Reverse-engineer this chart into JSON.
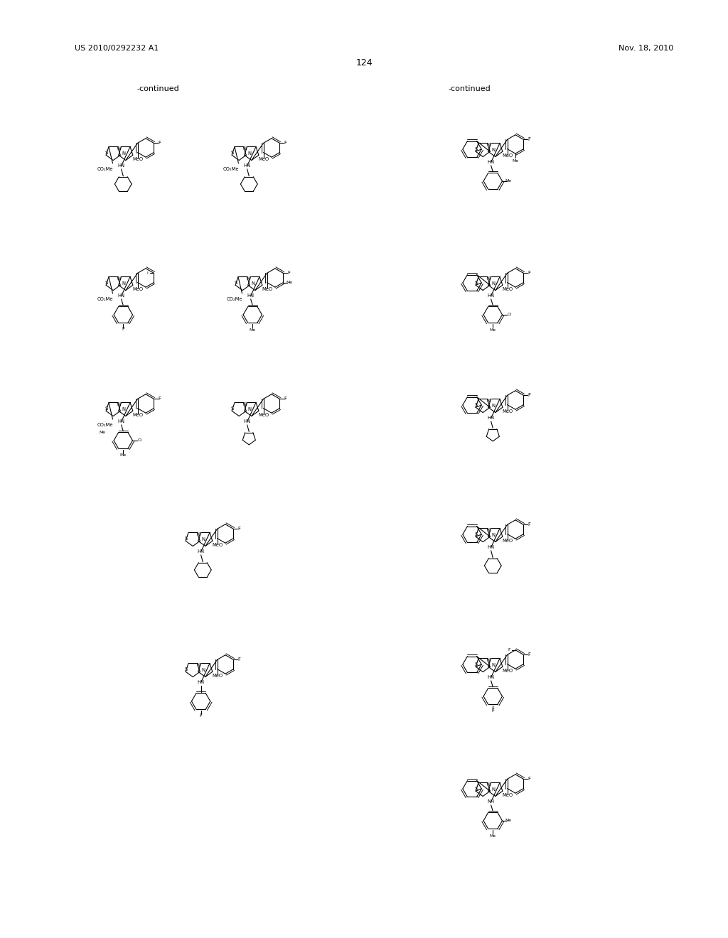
{
  "page_number": "124",
  "patent_number": "US 2010/0292232 A1",
  "patent_date": "Nov. 18, 2010",
  "background_color": "#ffffff",
  "text_color": "#000000",
  "continued_left": "-continued",
  "continued_right": "-continued"
}
